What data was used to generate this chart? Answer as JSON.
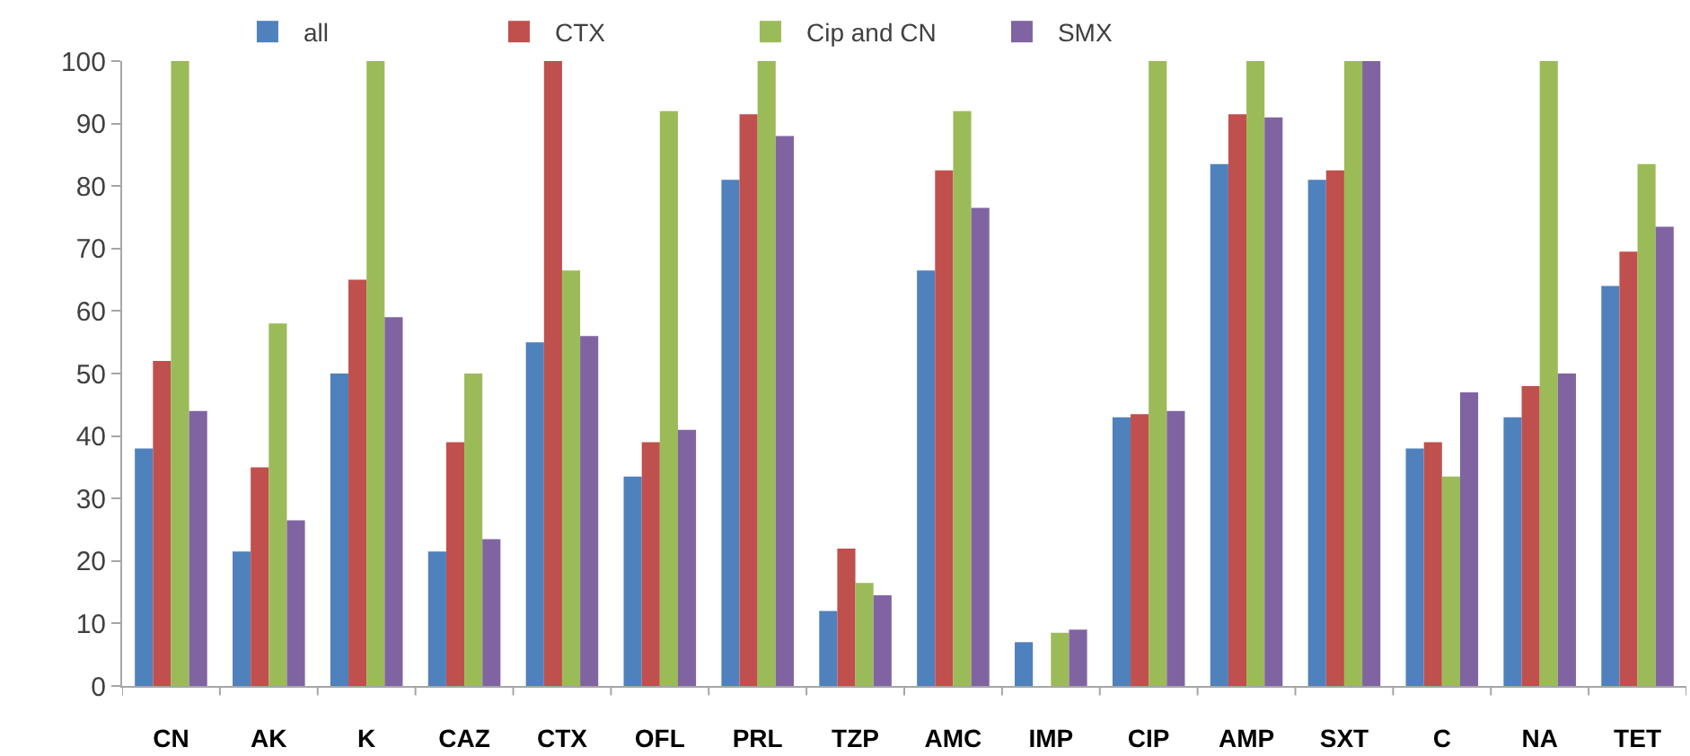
{
  "chart_data": {
    "type": "bar",
    "categories": [
      "CN",
      "AK",
      "K",
      "CAZ",
      "CTX",
      "OFL",
      "PRL",
      "TZP",
      "AMC",
      "IMP",
      "CIP",
      "AMP",
      "SXT",
      "C",
      "NA",
      "TET"
    ],
    "series": [
      {
        "name": "all",
        "color": "#4f81bd",
        "values": [
          38,
          21.5,
          50,
          21.5,
          55,
          33.5,
          81,
          12,
          66.5,
          7,
          43,
          83.5,
          81,
          38,
          43,
          64
        ]
      },
      {
        "name": "CTX",
        "color": "#c0504d",
        "values": [
          52,
          35,
          65,
          39,
          100,
          39,
          91.5,
          22,
          82.5,
          0,
          43.5,
          91.5,
          82.5,
          39,
          48,
          69.5
        ]
      },
      {
        "name": "Cip and CN",
        "color": "#9bbb59",
        "values": [
          100,
          58,
          100,
          50,
          66.5,
          92,
          100,
          16.5,
          92,
          8.5,
          100,
          100,
          100,
          33.5,
          100,
          83.5
        ]
      },
      {
        "name": "SMX",
        "color": "#8064a2",
        "values": [
          44,
          26.5,
          59,
          23.5,
          56,
          41,
          88,
          14.5,
          76.5,
          9,
          44,
          91,
          100,
          47,
          50,
          73.5
        ]
      }
    ],
    "ylim": [
      0,
      100
    ],
    "yticks": [
      0,
      10,
      20,
      30,
      40,
      50,
      60,
      70,
      80,
      90,
      100
    ],
    "legend": "top",
    "grid": false
  }
}
